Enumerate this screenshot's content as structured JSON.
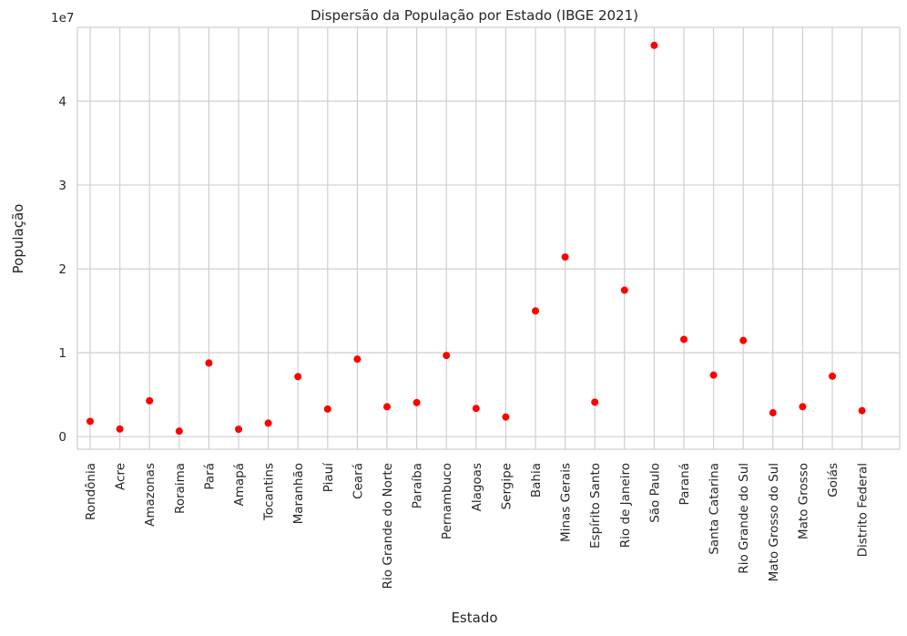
{
  "chart_data": {
    "type": "scatter",
    "title": "Dispersão da População por Estado (IBGE 2021)",
    "xlabel": "Estado",
    "ylabel": "População",
    "y_offset_label": "1e7",
    "y_ticks": [
      0,
      1,
      2,
      3,
      4
    ],
    "y_tick_labels": [
      "0",
      "1",
      "2",
      "3",
      "4"
    ],
    "ylim": [
      -1500000,
      48800000
    ],
    "grid": true,
    "marker_color": "#ff0000",
    "categories": [
      "Rondônia",
      "Acre",
      "Amazonas",
      "Roraima",
      "Pará",
      "Amapá",
      "Tocantins",
      "Maranhão",
      "Piauí",
      "Ceará",
      "Rio Grande do Norte",
      "Paraíba",
      "Pernambuco",
      "Alagoas",
      "Sergipe",
      "Bahia",
      "Minas Gerais",
      "Espírito Santo",
      "Rio de Janeiro",
      "São Paulo",
      "Paraná",
      "Santa Catarina",
      "Rio Grande do Sul",
      "Mato Grosso do Sul",
      "Mato Grosso",
      "Goiás",
      "Distrito Federal"
    ],
    "values": [
      1815278,
      906876,
      4269995,
      652713,
      8777124,
      877613,
      1607363,
      7153262,
      3289290,
      9240580,
      3560903,
      4059905,
      9674793,
      3365351,
      2338474,
      14985284,
      21411923,
      4108508,
      17463349,
      46649132,
      11597484,
      7338473,
      11466630,
      2839188,
      3567234,
      7206589,
      3094325
    ]
  }
}
